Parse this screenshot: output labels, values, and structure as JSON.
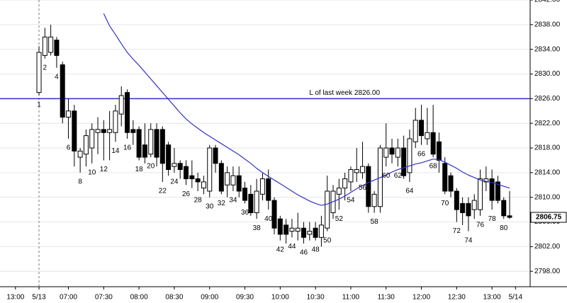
{
  "chart_data": {
    "type": "candlestick",
    "x": [
      1,
      2,
      3,
      4,
      5,
      6,
      7,
      8,
      9,
      10,
      11,
      12,
      13,
      14,
      15,
      16,
      17,
      18,
      19,
      20,
      21,
      22,
      23,
      24,
      25,
      26,
      27,
      28,
      29,
      30,
      31,
      32,
      33,
      34,
      35,
      36,
      37,
      38,
      39,
      40,
      41,
      42,
      43,
      44,
      45,
      46,
      47,
      48,
      49,
      50,
      51,
      52,
      53,
      54,
      55,
      56,
      57,
      58,
      59,
      60,
      61,
      62,
      63,
      64,
      65,
      66,
      67,
      68,
      69,
      70,
      71,
      72,
      73,
      74,
      75,
      76,
      77,
      78,
      79,
      80,
      81
    ],
    "open": [
      2827,
      2833,
      2833.5,
      2835.5,
      2831.5,
      2823,
      2824,
      2816.5,
      2817,
      2818,
      2820.5,
      2821,
      2820.5,
      2820.5,
      2823.5,
      2827,
      2821,
      2821,
      2818.5,
      2817,
      2821,
      2821,
      2818.5,
      2815,
      2815.5,
      2815,
      2813.5,
      2813,
      2811.5,
      2811,
      2818,
      2815.5,
      2812,
      2812,
      2813.5,
      2811.5,
      2810.5,
      2807.5,
      2810.5,
      2813,
      2809.5,
      2806.5,
      2805.5,
      2804.5,
      2804.5,
      2805,
      2804,
      2805,
      2803.5,
      2805,
      2807.5,
      2810.5,
      2811.5,
      2812.5,
      2814,
      2814,
      2815,
      2808.5,
      2808.5,
      2816.5,
      2818,
      2816.5,
      2818,
      2814,
      2819,
      2822.5,
      2819.5,
      2820.5,
      2819,
      2815.5,
      2813.5,
      2811,
      2809,
      2809,
      2808,
      2808,
      2812.5,
      2813,
      2812.5,
      2809.5,
      2807
    ],
    "high": [
      2834.5,
      2837.5,
      2838,
      2836,
      2832,
      2826,
      2825,
      2818,
      2821,
      2822,
      2823,
      2822.5,
      2824,
      2825,
      2828,
      2827.5,
      2822.5,
      2821.5,
      2822,
      2822,
      2822,
      2821.5,
      2819,
      2818,
      2816,
      2816,
      2816,
      2814,
      2813.5,
      2818.5,
      2818.5,
      2816,
      2815,
      2815,
      2815,
      2812.5,
      2812,
      2813,
      2814,
      2814.5,
      2810,
      2807,
      2806.5,
      2806.5,
      2807.5,
      2806,
      2806,
      2806,
      2807,
      2813.5,
      2812,
      2813,
      2814,
      2815,
      2818,
      2819,
      2815.5,
      2811,
      2818.5,
      2822,
      2819.5,
      2819.5,
      2820,
      2821,
      2824.5,
      2825,
      2824.5,
      2825,
      2820.5,
      2816.5,
      2814,
      2811.5,
      2810,
      2810,
      2810.5,
      2814.5,
      2815,
      2814.5,
      2813.5,
      2810,
      2811
    ],
    "low": [
      2826.5,
      2832.5,
      2833,
      2831,
      2822,
      2819.5,
      2815,
      2814,
      2815,
      2815.5,
      2817,
      2816,
      2816,
      2819,
      2821.5,
      2819.5,
      2818.5,
      2816,
      2815.5,
      2816.5,
      2815,
      2812.5,
      2813.5,
      2814,
      2813,
      2812,
      2811.5,
      2811,
      2810.5,
      2810,
      2814,
      2810.5,
      2810,
      2811,
      2810,
      2809,
      2807,
      2806.5,
      2809.5,
      2808,
      2804,
      2803,
      2802.5,
      2803.5,
      2803,
      2802.5,
      2803,
      2803,
      2802,
      2804.5,
      2806.5,
      2808,
      2809.5,
      2811,
      2812.5,
      2813,
      2807.5,
      2807.5,
      2807.5,
      2815,
      2815.5,
      2815,
      2813,
      2812.5,
      2818,
      2818.5,
      2818.5,
      2816.5,
      2814,
      2810.5,
      2810,
      2806,
      2805.5,
      2804.5,
      2806.5,
      2807,
      2811,
      2808,
      2809,
      2806.5,
      2806.5
    ],
    "close": [
      2833.5,
      2836,
      2836,
      2833,
      2823,
      2824,
      2817.5,
      2817.5,
      2820,
      2821,
      2821,
      2820.5,
      2821,
      2824,
      2826.5,
      2820.5,
      2820.5,
      2816.5,
      2816.5,
      2821,
      2816.5,
      2815.5,
      2814.5,
      2815.5,
      2814.5,
      2813,
      2813,
      2812.5,
      2812.5,
      2818,
      2815.5,
      2811,
      2814,
      2813.5,
      2811,
      2809.5,
      2807.5,
      2811,
      2813,
      2809.5,
      2805,
      2804,
      2804,
      2805,
      2805,
      2803.5,
      2804.5,
      2803.5,
      2805.5,
      2811,
      2811,
      2811.5,
      2813,
      2814.5,
      2814.5,
      2815,
      2808.5,
      2810.5,
      2818,
      2818,
      2817,
      2818,
      2813.5,
      2819.5,
      2822.5,
      2820,
      2820.5,
      2817,
      2816,
      2811,
      2811,
      2808,
      2807.5,
      2807,
      2809.5,
      2813,
      2813,
      2809.5,
      2809.5,
      2807,
      2806.75
    ],
    "up_color": "#ffffff",
    "down_color": "#000000",
    "moving_average": {
      "color": "#3030c8",
      "values": [
        null,
        null,
        null,
        null,
        null,
        null,
        null,
        null,
        null,
        null,
        null,
        2839.8,
        2837.8,
        2836.4,
        2834.9,
        2833.5,
        2832.4,
        2831.4,
        2830.3,
        2829.2,
        2828.1,
        2827.0,
        2825.9,
        2824.8,
        2823.7,
        2822.7,
        2821.9,
        2821.2,
        2820.5,
        2819.9,
        2819.3,
        2818.7,
        2818.1,
        2817.5,
        2816.9,
        2816.2,
        2815.5,
        2814.7,
        2814.0,
        2813.4,
        2812.8,
        2812.2,
        2811.6,
        2811.0,
        2810.4,
        2809.9,
        2809.4,
        2809.0,
        2808.7,
        2808.9,
        2809.3,
        2809.7,
        2810.2,
        2810.8,
        2811.4,
        2811.9,
        2812.4,
        2812.8,
        2813.2,
        2813.6,
        2814.1,
        2814.5,
        2814.8,
        2815.1,
        2815.4,
        2815.6,
        2815.9,
        2816.2,
        2816.1,
        2815.7,
        2815.2,
        2814.7,
        2814.1,
        2813.6,
        2813.2,
        2812.8,
        2812.6,
        2812.4,
        2812.1,
        2811.8,
        2811.5
      ]
    },
    "reference_line": {
      "value": 2826,
      "label": "L of last week 2826.00",
      "color": "#3030c8"
    },
    "last_price": 2806.75,
    "day_breaks": [
      1
    ],
    "bar_labels": [
      {
        "bar": 1,
        "color": "#999999"
      },
      {
        "bar": 2,
        "color": "#999999"
      },
      {
        "bar": 4,
        "color": "#999999"
      },
      {
        "bar": 6,
        "color": "#999999"
      },
      {
        "bar": 8,
        "color": "#999999"
      },
      {
        "bar": 10,
        "color": "#999999"
      },
      {
        "bar": 12,
        "color": "#c00000"
      },
      {
        "bar": 14,
        "color": "#999999"
      },
      {
        "bar": 16,
        "color": "#999999"
      },
      {
        "bar": 18,
        "color": "#2a8fd0"
      },
      {
        "bar": 20,
        "color": "#999999"
      },
      {
        "bar": 22,
        "color": "#999999"
      },
      {
        "bar": 24,
        "color": "#c00000"
      },
      {
        "bar": 26,
        "color": "#999999"
      },
      {
        "bar": 28,
        "color": "#999999"
      },
      {
        "bar": 30,
        "color": "#999999"
      },
      {
        "bar": 32,
        "color": "#999999"
      },
      {
        "bar": 34,
        "color": "#999999"
      },
      {
        "bar": 36,
        "color": "#c00000"
      },
      {
        "bar": 38,
        "color": "#999999"
      },
      {
        "bar": 40,
        "color": "#999999"
      },
      {
        "bar": 42,
        "color": "#999999"
      },
      {
        "bar": 44,
        "color": "#999999"
      },
      {
        "bar": 46,
        "color": "#999999"
      },
      {
        "bar": 48,
        "color": "#c00000"
      },
      {
        "bar": 50,
        "color": "#999999"
      },
      {
        "bar": 52,
        "color": "#999999"
      },
      {
        "bar": 54,
        "color": "#999999"
      },
      {
        "bar": 56,
        "color": "#999999"
      },
      {
        "bar": 58,
        "color": "#999999"
      },
      {
        "bar": 60,
        "color": "#c00000"
      },
      {
        "bar": 62,
        "color": "#999999"
      },
      {
        "bar": 64,
        "color": "#999999"
      },
      {
        "bar": 66,
        "color": "#999999"
      },
      {
        "bar": 68,
        "color": "#999999"
      },
      {
        "bar": 70,
        "color": "#999999"
      },
      {
        "bar": 72,
        "color": "#c00000"
      },
      {
        "bar": 74,
        "color": "#999999"
      },
      {
        "bar": 76,
        "color": "#999999"
      },
      {
        "bar": 78,
        "color": "#999999"
      },
      {
        "bar": 80,
        "color": "#999999"
      }
    ],
    "xlim": [
      -5.63,
      84.49
    ],
    "xticks": [
      {
        "value": -3,
        "label": "13:00"
      },
      {
        "value": 1,
        "label": "5/13"
      },
      {
        "value": 6,
        "label": "07:00"
      },
      {
        "value": 12,
        "label": "07:30"
      },
      {
        "value": 18,
        "label": "08:00"
      },
      {
        "value": 24,
        "label": "08:30"
      },
      {
        "value": 30,
        "label": "09:00"
      },
      {
        "value": 36,
        "label": "09:30"
      },
      {
        "value": 42,
        "label": "10:00"
      },
      {
        "value": 48,
        "label": "10:30"
      },
      {
        "value": 54,
        "label": "11:00"
      },
      {
        "value": 60,
        "label": "11:30"
      },
      {
        "value": 66,
        "label": "12:00"
      },
      {
        "value": 72,
        "label": "12:30"
      },
      {
        "value": 78,
        "label": "13:00"
      },
      {
        "value": 82,
        "label": "5/14"
      }
    ],
    "ylim": [
      2795.5,
      2842
    ],
    "yticks": [
      {
        "value": 2798,
        "label": "2798.00"
      },
      {
        "value": 2802,
        "label": "2802.00"
      },
      {
        "value": 2806,
        "label": "2806.00"
      },
      {
        "value": 2810,
        "label": "2810.00"
      },
      {
        "value": 2814,
        "label": "2814.00"
      },
      {
        "value": 2818,
        "label": "2818.00"
      },
      {
        "value": 2822,
        "label": "2822.00"
      },
      {
        "value": 2826,
        "label": "2826.00"
      },
      {
        "value": 2830,
        "label": "2830.00"
      },
      {
        "value": 2834,
        "label": "2834.00"
      },
      {
        "value": 2838,
        "label": "2838.00"
      },
      {
        "value": 2842,
        "label": "2842.00"
      }
    ],
    "grid": true
  }
}
